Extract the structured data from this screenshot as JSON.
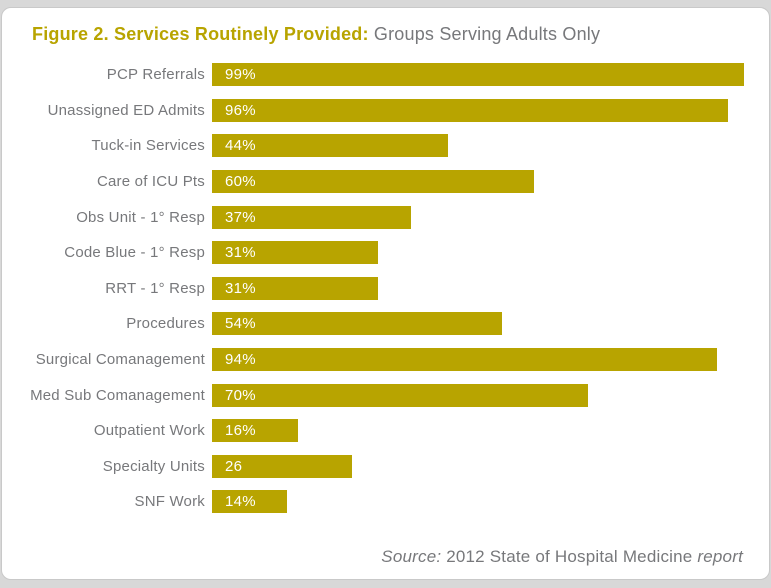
{
  "title": {
    "bold": "Figure 2. Services Routinely Provided:",
    "rest": " Groups Serving Adults Only"
  },
  "source": {
    "prefix": "Source:",
    "middle": " 2012 State of Hospital Medicine ",
    "suffix": "report"
  },
  "colors": {
    "bar": "#b8a400",
    "title_gold": "#b8a400",
    "gray_text": "#77787b"
  },
  "chart_data": {
    "type": "bar",
    "orientation": "horizontal",
    "title": "Figure 2. Services Routinely Provided: Groups Serving Adults Only",
    "xlabel": "",
    "ylabel": "",
    "xlim": [
      0,
      100
    ],
    "grid": false,
    "legend": "none",
    "categories": [
      "PCP Referrals",
      "Unassigned ED Admits",
      "Tuck-in Services",
      "Care of ICU Pts",
      "Obs Unit - 1° Resp",
      "Code Blue - 1° Resp",
      "RRT - 1° Resp",
      "Procedures",
      "Surgical Comanagement",
      "Med Sub Comanagement",
      "Outpatient Work",
      "Specialty Units",
      "SNF Work"
    ],
    "values": [
      99,
      96,
      44,
      60,
      37,
      31,
      31,
      54,
      94,
      70,
      16,
      26,
      14
    ],
    "value_labels": [
      "99%",
      "96%",
      "44%",
      "60%",
      "37%",
      "31%",
      "31%",
      "54%",
      "94%",
      "70%",
      "16%",
      "26",
      "14%"
    ],
    "source_note": "Source: 2012 State of Hospital Medicine report"
  }
}
